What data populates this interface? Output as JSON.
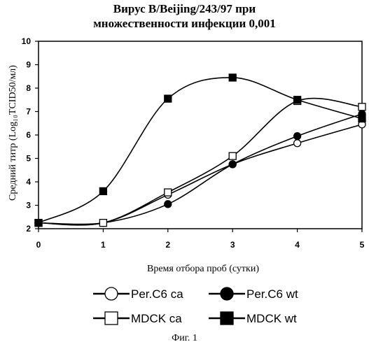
{
  "chart_data": {
    "type": "line",
    "title": "Вирус B/Beijing/243/97 при",
    "subtitle": "множественности инфекции 0,001",
    "xlabel": "Время отбора проб (сутки)",
    "ylabel": "Средний титр (Log₁₀TCID50/мл)",
    "x": [
      0,
      1,
      2,
      3,
      4,
      5
    ],
    "xlim": [
      0,
      5
    ],
    "ylim": [
      2,
      10
    ],
    "yticks": [
      2,
      3,
      4,
      5,
      6,
      7,
      8,
      9,
      10
    ],
    "grid": false,
    "legend_position": "bottom",
    "series": [
      {
        "name": "Per.C6 ca",
        "marker": "circle-open",
        "values": [
          2.25,
          2.25,
          3.45,
          4.75,
          5.65,
          6.45
        ]
      },
      {
        "name": "Per.C6 wt",
        "marker": "circle-filled",
        "values": [
          2.25,
          2.25,
          3.05,
          4.75,
          5.95,
          6.9
        ]
      },
      {
        "name": "MDCK ca",
        "marker": "square-open",
        "values": [
          2.25,
          2.25,
          3.55,
          5.1,
          7.45,
          7.2
        ]
      },
      {
        "name": "MDCK wt",
        "marker": "square-filled",
        "values": [
          2.25,
          3.6,
          7.55,
          8.45,
          7.5,
          6.7
        ]
      }
    ]
  },
  "caption": "Фиг. 1"
}
